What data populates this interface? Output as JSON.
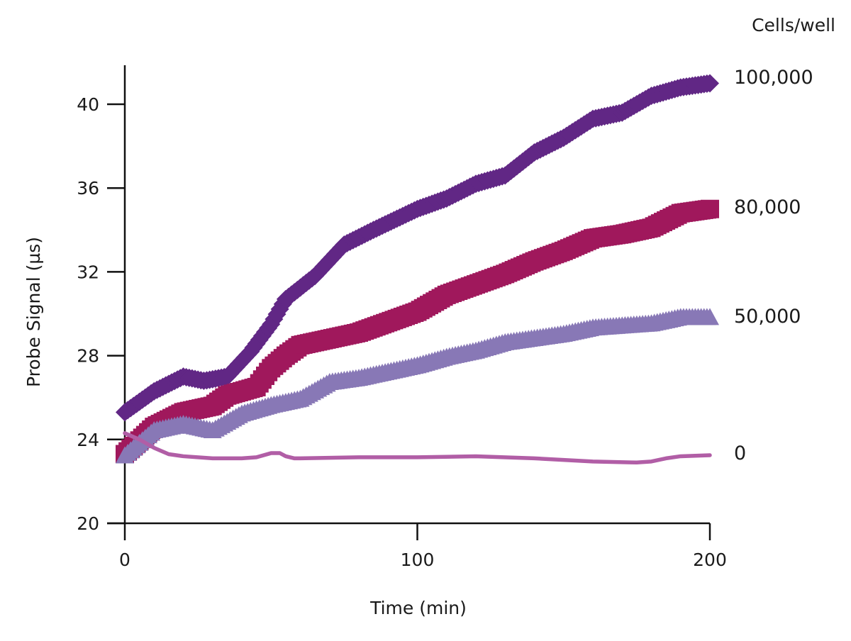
{
  "chart_data": {
    "type": "line",
    "xlabel": "Time (min)",
    "ylabel": "Probe Signal (µs)",
    "legend_title": "Cells/well",
    "xlim": [
      0,
      200
    ],
    "ylim": [
      20,
      42
    ],
    "x_ticks": [
      0,
      100,
      200
    ],
    "y_ticks": [
      20,
      24,
      28,
      32,
      36,
      40
    ],
    "grid": false,
    "series": [
      {
        "name": "100,000",
        "color": "#612785",
        "marker": "diamond",
        "x": [
          0,
          10,
          20,
          27,
          35,
          43,
          50,
          55,
          65,
          75,
          85,
          100,
          110,
          120,
          130,
          140,
          150,
          160,
          170,
          180,
          190,
          200
        ],
        "y": [
          25.3,
          26.3,
          27.0,
          26.8,
          27.0,
          28.2,
          29.5,
          30.7,
          31.8,
          33.3,
          34.0,
          35.0,
          35.5,
          36.2,
          36.6,
          37.7,
          38.4,
          39.3,
          39.6,
          40.4,
          40.8,
          41.0
        ]
      },
      {
        "name": "80,000",
        "color": "#a0185c",
        "marker": "square",
        "x": [
          0,
          10,
          20,
          30,
          35,
          45,
          50,
          55,
          60,
          70,
          80,
          90,
          100,
          110,
          120,
          130,
          140,
          150,
          160,
          170,
          180,
          190,
          200
        ],
        "y": [
          23.3,
          24.6,
          25.3,
          25.6,
          26.1,
          26.5,
          27.4,
          28.0,
          28.5,
          28.8,
          29.1,
          29.6,
          30.1,
          30.9,
          31.4,
          31.9,
          32.5,
          33.0,
          33.6,
          33.8,
          34.1,
          34.8,
          35.0
        ]
      },
      {
        "name": "50,000",
        "color": "#8878b6",
        "marker": "triangle",
        "x": [
          0,
          10,
          20,
          30,
          40,
          50,
          60,
          70,
          80,
          90,
          100,
          110,
          120,
          130,
          140,
          150,
          160,
          170,
          180,
          190,
          200
        ],
        "y": [
          23.2,
          24.4,
          24.7,
          24.4,
          25.2,
          25.6,
          25.9,
          26.7,
          26.9,
          27.2,
          27.5,
          27.9,
          28.2,
          28.6,
          28.8,
          29.0,
          29.3,
          29.4,
          29.5,
          29.8,
          29.8
        ]
      },
      {
        "name": "0",
        "color": "#b15ea6",
        "marker": "none",
        "x": [
          0,
          5,
          10,
          15,
          20,
          30,
          40,
          45,
          50,
          53,
          55,
          58,
          60,
          80,
          100,
          120,
          140,
          160,
          175,
          180,
          185,
          190,
          200
        ],
        "y": [
          24.3,
          24.0,
          23.6,
          23.3,
          23.2,
          23.1,
          23.1,
          23.15,
          23.35,
          23.35,
          23.2,
          23.1,
          23.1,
          23.15,
          23.15,
          23.2,
          23.1,
          22.95,
          22.9,
          22.95,
          23.1,
          23.2,
          23.25
        ]
      }
    ]
  }
}
